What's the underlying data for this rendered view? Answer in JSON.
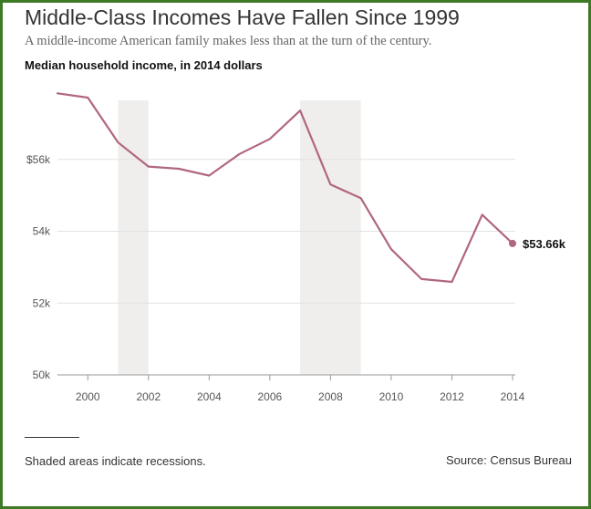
{
  "title": "Middle-Class Incomes Have Fallen Since 1999",
  "subtitle": "A middle-income American family makes less than at the turn of the century.",
  "footer": {
    "note": "Shaded areas indicate recessions.",
    "source": "Source: Census Bureau"
  },
  "colors": {
    "line": "#b0677e",
    "recession": "#f0eeec",
    "frame": "#3c7a26"
  },
  "chart_data": {
    "type": "line",
    "title": "Median household income, in 2014 dollars",
    "x": [
      1999,
      2000,
      2001,
      2002,
      2003,
      2004,
      2005,
      2006,
      2007,
      2008,
      2009,
      2010,
      2011,
      2012,
      2013,
      2014
    ],
    "values": [
      57840,
      57720,
      56470,
      55800,
      55740,
      55550,
      56150,
      56570,
      57360,
      55300,
      54920,
      53500,
      52670,
      52590,
      54460,
      53660
    ],
    "xlim": [
      1999,
      2014
    ],
    "ylim": [
      50000,
      58000
    ],
    "x_ticks": [
      2000,
      2002,
      2004,
      2006,
      2008,
      2010,
      2012,
      2014
    ],
    "x_tick_labels": [
      "2000",
      "2002",
      "2004",
      "2006",
      "2008",
      "2010",
      "2012",
      "2014"
    ],
    "y_ticks": [
      50000,
      52000,
      54000,
      56000
    ],
    "y_tick_labels": [
      "50k",
      "52k",
      "54k",
      "$56k"
    ],
    "recessions": [
      [
        2001,
        2002
      ],
      [
        2007,
        2009
      ]
    ],
    "end_label": "$53.66k",
    "grid": true
  }
}
